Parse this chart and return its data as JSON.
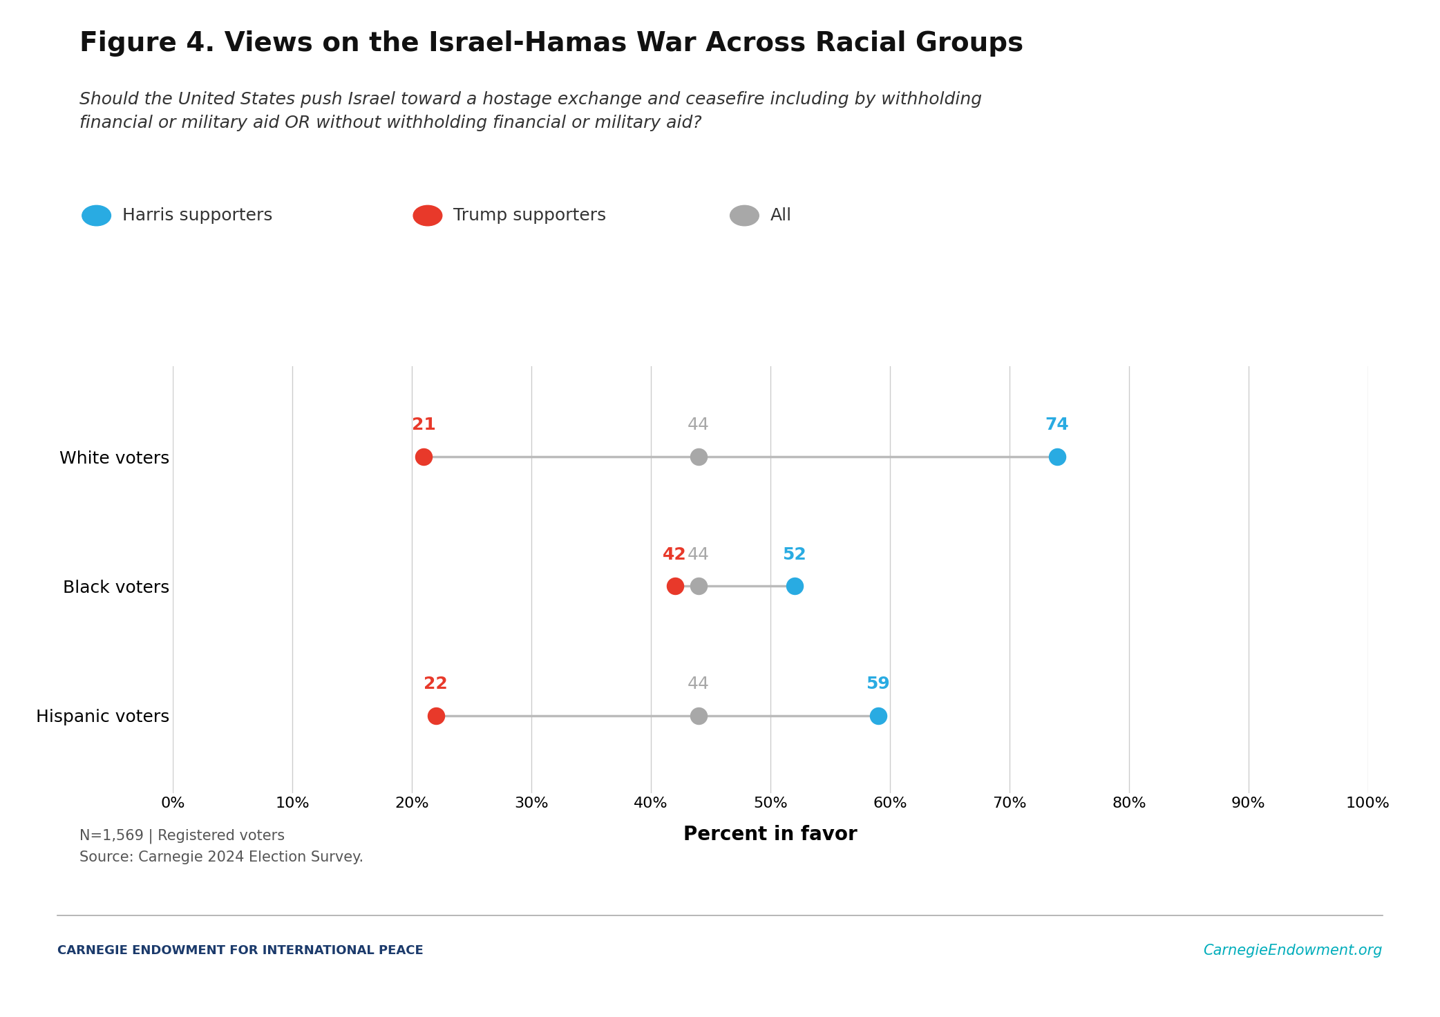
{
  "title": "Figure 4. Views on the Israel-Hamas War Across Racial Groups",
  "subtitle_line1": "Should the United States push Israel toward a hostage exchange and ceasefire including by withholding",
  "subtitle_line2": "financial or military aid OR without withholding financial or military aid?",
  "groups": [
    "White voters",
    "Black voters",
    "Hispanic voters"
  ],
  "harris_values": [
    74,
    52,
    59
  ],
  "trump_values": [
    21,
    42,
    22
  ],
  "all_values": [
    44,
    44,
    44
  ],
  "harris_color": "#29ABE2",
  "trump_color": "#E8392A",
  "all_color": "#A8A8A8",
  "line_color": "#BBBBBB",
  "xlabel": "Percent in favor",
  "xlim": [
    0,
    100
  ],
  "xticks": [
    0,
    10,
    20,
    30,
    40,
    50,
    60,
    70,
    80,
    90,
    100
  ],
  "legend_labels": [
    "Harris supporters",
    "Trump supporters",
    "All"
  ],
  "footnote_line1": "N=1,569 | Registered voters",
  "footnote_line2": "Source: Carnegie 2024 Election Survey.",
  "footer_left": "CARNEGIE ENDOWMENT FOR INTERNATIONAL PEACE",
  "footer_right": "CarnegieEndowment.org",
  "footer_left_color": "#1B3A6B",
  "footer_right_color": "#00ADBB",
  "background_color": "#FFFFFF"
}
